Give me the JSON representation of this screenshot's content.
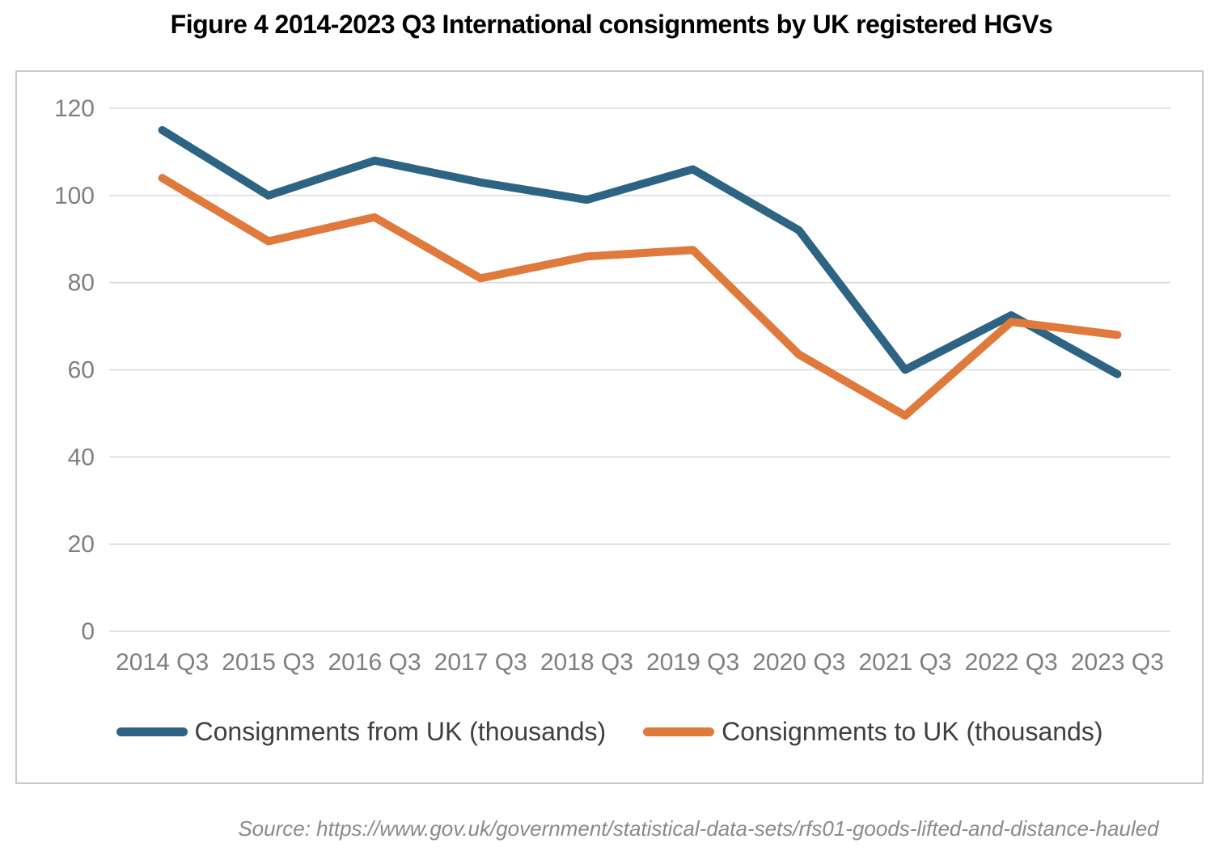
{
  "title": "Figure 4 2014-2023 Q3 International consignments by UK registered HGVs",
  "source_note": "Source: https://www.gov.uk/government/statistical-data-sets/rfs01-goods-lifted-and-distance-hauled",
  "colors": {
    "from_uk_line": "#2d6484",
    "to_uk_line": "#e0793c",
    "gridline": "#d9d9d9",
    "axis_text": "#7f7f7f",
    "legend_text": "#3f3f3f",
    "frame_border": "#c9c9c9",
    "title_text": "#000000",
    "source_text": "#8a8a8a"
  },
  "chart_data": {
    "type": "line",
    "title": "Figure 4 2014-2023 Q3 International consignments by UK registered HGVs",
    "categories": [
      "2014 Q3",
      "2015 Q3",
      "2016 Q3",
      "2017 Q3",
      "2018 Q3",
      "2019 Q3",
      "2020 Q3",
      "2021 Q3",
      "2022 Q3",
      "2023 Q3"
    ],
    "series": [
      {
        "name": "Consignments from UK (thousands)",
        "color": "#2d6484",
        "values": [
          115,
          100,
          108,
          103,
          99,
          106,
          92,
          60,
          72.5,
          59
        ]
      },
      {
        "name": "Consignments to UK (thousands)",
        "color": "#e0793c",
        "values": [
          104,
          89.5,
          95,
          81,
          86,
          87.5,
          63.5,
          49.5,
          71,
          68
        ]
      }
    ],
    "xlabel": "",
    "ylabel": "",
    "ylim": [
      0,
      120
    ],
    "yticks": [
      0,
      20,
      40,
      60,
      80,
      100,
      120
    ],
    "grid": true,
    "legend_position": "bottom"
  }
}
